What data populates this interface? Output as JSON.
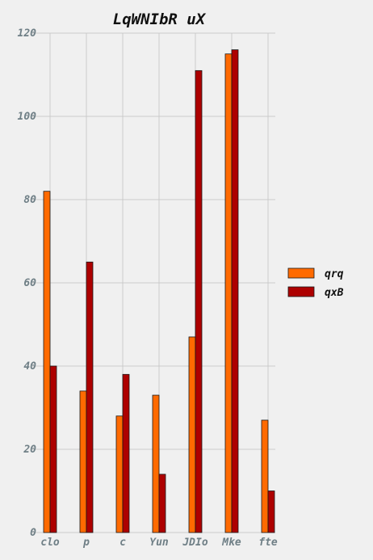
{
  "chart_data": {
    "type": "bar",
    "title": "LqWNIbR uX",
    "xlabel": "",
    "ylabel": "",
    "categories": [
      "clo",
      "p",
      "c",
      "Yun",
      "JDIo",
      "Mke",
      "fte"
    ],
    "series": [
      {
        "name": "qrq",
        "color": "#ff6a00",
        "values": [
          82,
          34,
          28,
          33,
          47,
          115,
          27
        ]
      },
      {
        "name": "qxB",
        "color": "#ad0000",
        "values": [
          40,
          65,
          38,
          14,
          111,
          116,
          10
        ]
      }
    ],
    "ylim": [
      0,
      120
    ],
    "yticks": [
      0,
      20,
      40,
      60,
      80,
      100,
      120
    ],
    "grid": true,
    "legend_position": "right",
    "background_color": "#f0f0f0",
    "grid_color": "#cbcbcb"
  }
}
